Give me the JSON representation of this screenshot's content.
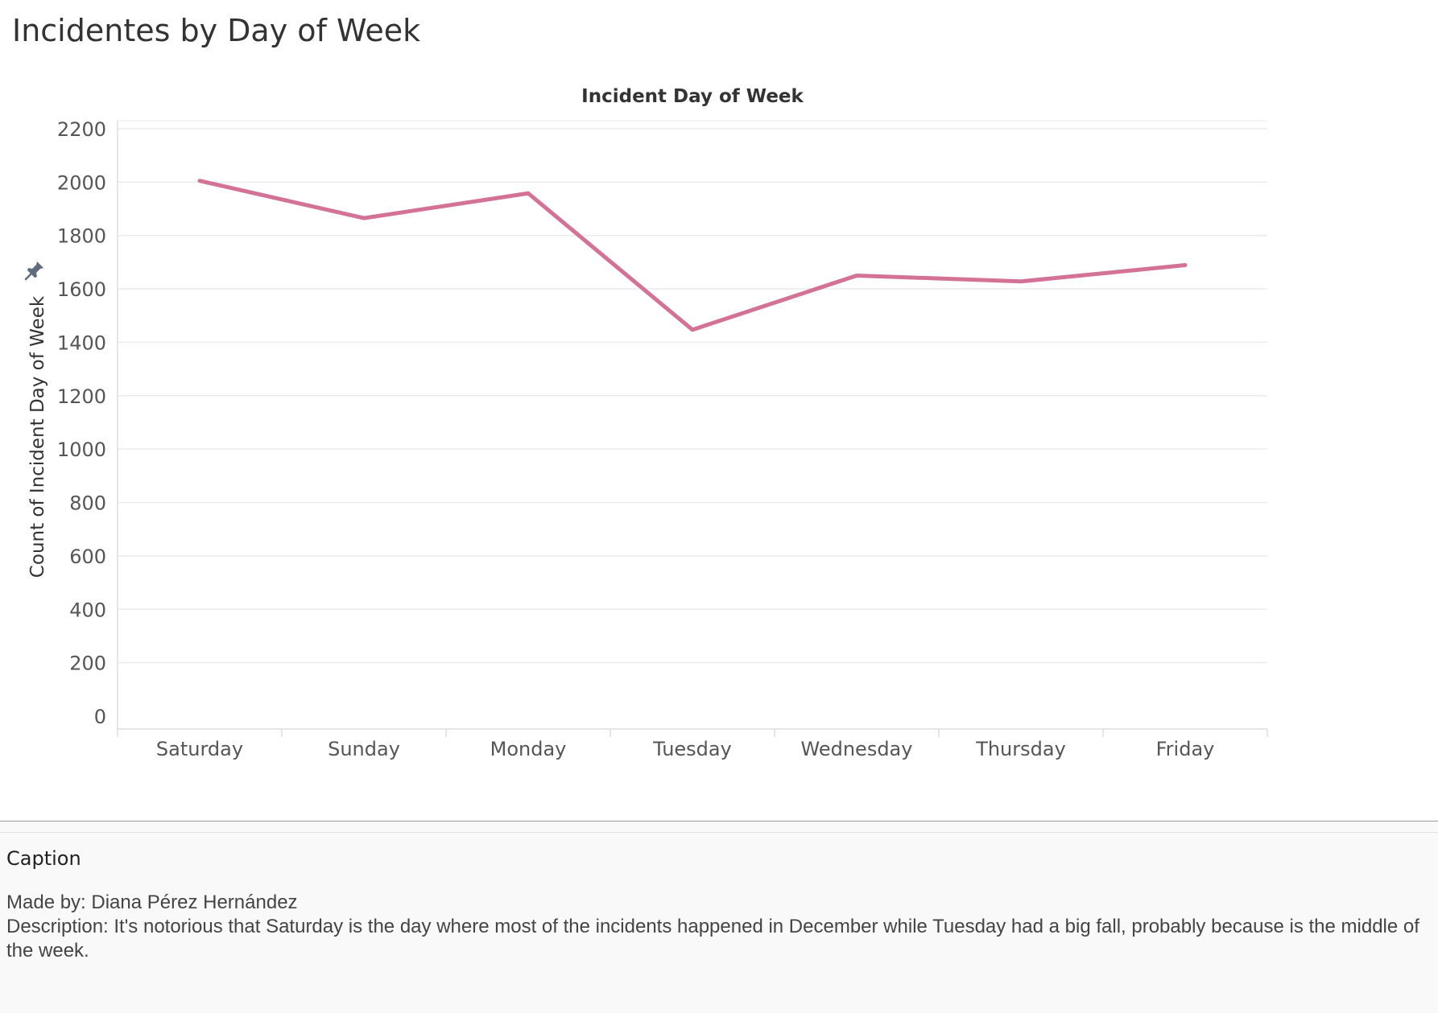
{
  "sheet": {
    "title": "Incidentes by Day of Week"
  },
  "chart_data": {
    "type": "line",
    "title": "Incident Day of Week",
    "xlabel": "",
    "ylabel": "Count of Incident Day of Week",
    "categories": [
      "Saturday",
      "Sunday",
      "Monday",
      "Tuesday",
      "Wednesday",
      "Thursday",
      "Friday"
    ],
    "values": [
      2005,
      1865,
      1958,
      1447,
      1650,
      1628,
      1689
    ],
    "ylim": [
      0,
      2200
    ],
    "yticks": [
      0,
      200,
      400,
      600,
      800,
      1000,
      1200,
      1400,
      1600,
      1800,
      2000,
      2200
    ],
    "grid": true,
    "legend": "none",
    "colors": {
      "line": "#d37295",
      "grid": "#ebebeb",
      "axis": "#dddddd"
    }
  },
  "icons": {
    "pin": "pin-icon"
  },
  "caption": {
    "label": "Caption",
    "made_by": "Made by: Diana Pérez Hernández",
    "description": "Description: It's notorious that Saturday is the day where most of the incidents happened in December while Tuesday had a big fall, probably because is the middle of the week."
  }
}
